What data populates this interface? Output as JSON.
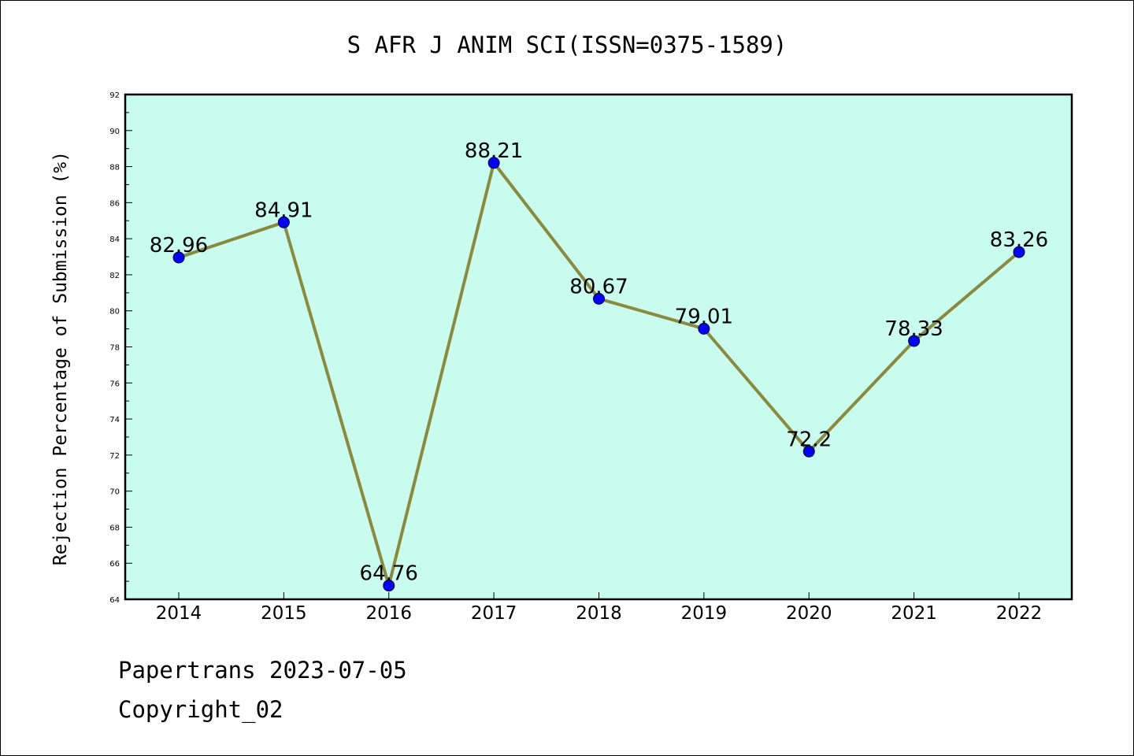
{
  "chart_data": {
    "type": "line",
    "title": "S AFR J ANIM SCI(ISSN=0375-1589)",
    "xlabel": "",
    "ylabel": "Rejection Percentage of Submission (%)",
    "categories": [
      "2014",
      "2015",
      "2016",
      "2017",
      "2018",
      "2019",
      "2020",
      "2021",
      "2022"
    ],
    "series": [
      {
        "values": [
          82.96,
          84.91,
          64.76,
          88.21,
          80.67,
          79.01,
          72.2,
          78.33,
          83.26
        ],
        "data_labels": [
          "82.96",
          "84.91",
          "64.76",
          "88.21",
          "80.67",
          "79.01",
          "72.2",
          "78.33",
          "83.26"
        ],
        "line_color": "#8b8a3a",
        "marker_color": "#0000ff"
      }
    ],
    "ylim": [
      64,
      92
    ],
    "yticks": [
      64,
      66,
      68,
      70,
      72,
      74,
      76,
      78,
      80,
      82,
      84,
      86,
      88,
      90,
      92
    ],
    "plot_background": "#c8fcee",
    "grid": false,
    "legend": "none"
  },
  "footer": {
    "line1": "Papertrans 2023-07-05",
    "line2": "Copyright_02"
  }
}
